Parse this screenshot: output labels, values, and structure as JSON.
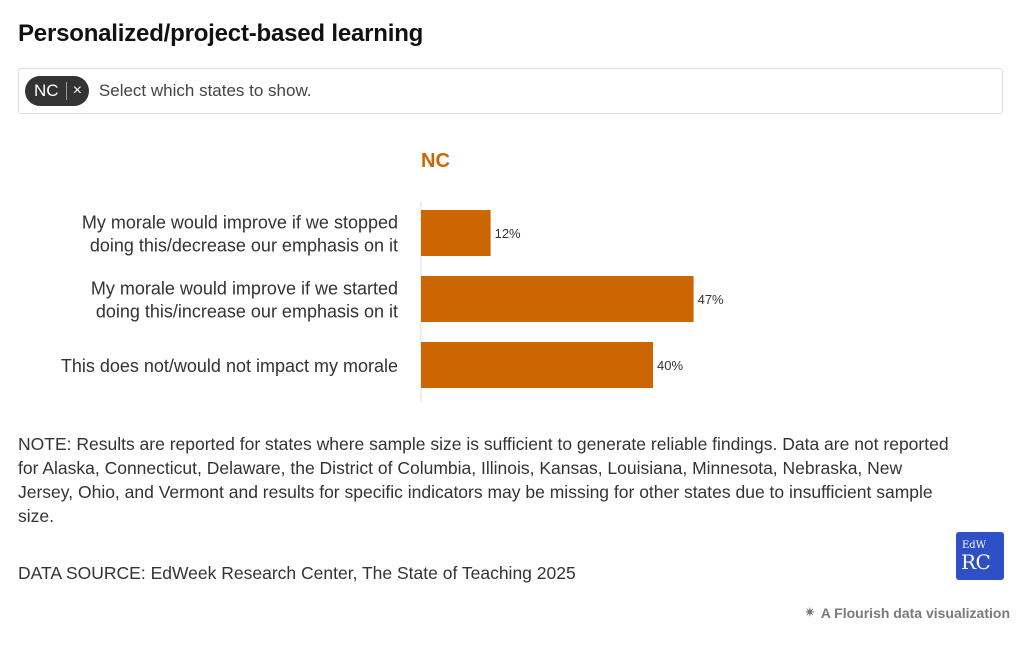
{
  "title": "Personalized/project-based learning",
  "selector": {
    "chip_label": "NC",
    "chip_remove_glyph": "×",
    "placeholder": "Select which states to show."
  },
  "colors": {
    "bar": "#cc6600",
    "panel_title": "#cc6600",
    "logo_bg": "#2f4fc7"
  },
  "chart_data": {
    "type": "bar",
    "orientation": "horizontal",
    "title": "NC",
    "categories": [
      [
        "My morale would improve if we stopped",
        "doing this/decrease our emphasis on it"
      ],
      [
        "My morale would improve if we started",
        "doing this/increase our emphasis on it"
      ],
      [
        "This does not/would not impact my morale"
      ]
    ],
    "values": [
      12,
      47,
      40
    ],
    "value_labels": [
      "12%",
      "47%",
      "40%"
    ],
    "xlim": [
      0,
      100
    ],
    "grid": false,
    "legend": "none"
  },
  "note": "NOTE: Results are reported for states where sample size is sufficient to generate reliable findings. Data are not reported for Alaska, Connecticut, Delaware, the District of Columbia, Illinois, Kansas, Louisiana, Minnesota, Nebraska, New Jersey, Ohio, and Vermont and results for specific indicators may be missing for other states due to insufficient sample size.",
  "source": "DATA SOURCE: EdWeek Research Center, The State of Teaching 2025",
  "logo": {
    "top": "EdW",
    "bottom": "RC"
  },
  "flourish": {
    "icon": "✷",
    "label": "A Flourish data visualization"
  }
}
